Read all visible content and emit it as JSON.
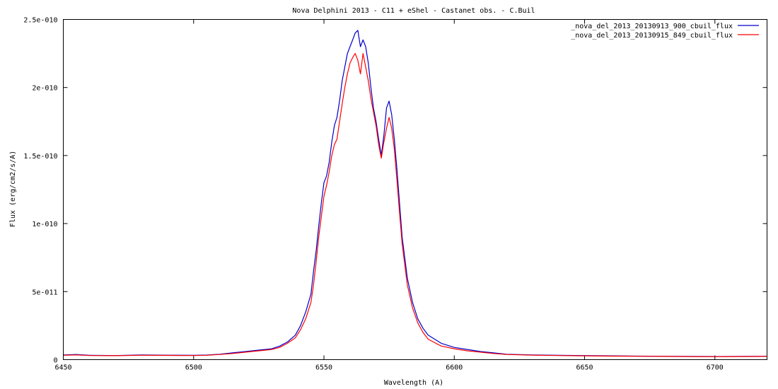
{
  "chart_data": {
    "type": "line",
    "title": "Nova Delphini 2013 - C11 + eShel - Castanet obs. - C.Buil",
    "xlabel": "Wavelength (A)",
    "ylabel": "Flux (erg/cm2/s/A)",
    "xlim": [
      6450,
      6720
    ],
    "ylim": [
      0,
      2.5e-10
    ],
    "grid": false,
    "legend_position": "top-right",
    "x_ticks": [
      {
        "value": 6450,
        "label": "6450"
      },
      {
        "value": 6500,
        "label": "6500"
      },
      {
        "value": 6550,
        "label": "6550"
      },
      {
        "value": 6600,
        "label": "6600"
      },
      {
        "value": 6650,
        "label": "6650"
      },
      {
        "value": 6700,
        "label": "6700"
      }
    ],
    "y_ticks": [
      {
        "value": 0,
        "label": "0"
      },
      {
        "value": 5e-11,
        "label": "5e-011"
      },
      {
        "value": 1e-10,
        "label": "1e-010"
      },
      {
        "value": 1.5e-10,
        "label": "1.5e-010"
      },
      {
        "value": 2e-10,
        "label": "2e-010"
      },
      {
        "value": 2.5e-10,
        "label": "2.5e-010"
      }
    ],
    "series": [
      {
        "name": "_nova_del_2013_20130913_900_cbuil_flux",
        "color": "#0000cc",
        "x": [
          6450,
          6455,
          6460,
          6470,
          6480,
          6490,
          6500,
          6505,
          6510,
          6515,
          6520,
          6525,
          6530,
          6533,
          6536,
          6539,
          6541,
          6543,
          6545,
          6546,
          6547,
          6548,
          6549,
          6550,
          6551,
          6552,
          6553,
          6554,
          6555,
          6556,
          6557,
          6558,
          6559,
          6560,
          6561,
          6562,
          6563,
          6564,
          6565,
          6566,
          6567,
          6568,
          6569,
          6570,
          6571,
          6572,
          6573,
          6574,
          6575,
          6576,
          6577,
          6578,
          6579,
          6580,
          6582,
          6584,
          6586,
          6588,
          6590,
          6595,
          6600,
          6605,
          6610,
          6615,
          6620,
          6630,
          6640,
          6650,
          6660,
          6670,
          6680,
          6690,
          6700,
          6710,
          6720
        ],
        "y": [
          3.5e-12,
          3.8e-12,
          3.2e-12,
          3e-12,
          3.5e-12,
          3.3e-12,
          3.2e-12,
          3.4e-12,
          4e-12,
          5e-12,
          6e-12,
          7e-12,
          8e-12,
          1e-11,
          1.3e-11,
          1.8e-11,
          2.5e-11,
          3.5e-11,
          4.8e-11,
          6.5e-11,
          8e-11,
          9.8e-11,
          1.15e-10,
          1.3e-10,
          1.35e-10,
          1.45e-10,
          1.6e-10,
          1.72e-10,
          1.78e-10,
          1.9e-10,
          2.05e-10,
          2.15e-10,
          2.25e-10,
          2.3e-10,
          2.35e-10,
          2.4e-10,
          2.42e-10,
          2.3e-10,
          2.35e-10,
          2.3e-10,
          2.18e-10,
          2e-10,
          1.85e-10,
          1.75e-10,
          1.62e-10,
          1.5e-10,
          1.65e-10,
          1.85e-10,
          1.9e-10,
          1.8e-10,
          1.62e-10,
          1.4e-10,
          1.15e-10,
          9e-11,
          6e-11,
          4.2e-11,
          3e-11,
          2.3e-11,
          1.8e-11,
          1.2e-11,
          9e-12,
          7.5e-12,
          6e-12,
          5e-12,
          4e-12,
          3.5e-12,
          3.2e-12,
          3e-12,
          2.8e-12,
          2.6e-12,
          2.5e-12,
          2.4e-12,
          2.3e-12,
          2.4e-12,
          2.5e-12
        ]
      },
      {
        "name": "_nova_del_2013_20130915_849_cbuil_flux",
        "color": "#ff0000",
        "x": [
          6450,
          6455,
          6460,
          6470,
          6480,
          6490,
          6500,
          6505,
          6510,
          6515,
          6520,
          6525,
          6530,
          6533,
          6536,
          6539,
          6541,
          6543,
          6545,
          6546,
          6547,
          6548,
          6549,
          6550,
          6551,
          6552,
          6553,
          6554,
          6555,
          6556,
          6557,
          6558,
          6559,
          6560,
          6561,
          6562,
          6563,
          6564,
          6565,
          6566,
          6567,
          6568,
          6569,
          6570,
          6571,
          6572,
          6573,
          6574,
          6575,
          6576,
          6577,
          6578,
          6579,
          6580,
          6582,
          6584,
          6586,
          6588,
          6590,
          6595,
          6600,
          6605,
          6610,
          6615,
          6620,
          6630,
          6640,
          6650,
          6660,
          6670,
          6680,
          6690,
          6700,
          6710,
          6720
        ],
        "y": [
          3.2e-12,
          3.5e-12,
          3e-12,
          2.9e-12,
          3.2e-12,
          3.1e-12,
          3e-12,
          3.2e-12,
          3.8e-12,
          4.5e-12,
          5.5e-12,
          6.5e-12,
          7.5e-12,
          9e-12,
          1.2e-11,
          1.6e-11,
          2.2e-11,
          3e-11,
          4.2e-11,
          5.5e-11,
          7.2e-11,
          9e-11,
          1.05e-10,
          1.2e-10,
          1.28e-10,
          1.38e-10,
          1.5e-10,
          1.58e-10,
          1.62e-10,
          1.75e-10,
          1.88e-10,
          2e-10,
          2.1e-10,
          2.18e-10,
          2.22e-10,
          2.25e-10,
          2.2e-10,
          2.1e-10,
          2.25e-10,
          2.15e-10,
          2.05e-10,
          1.92e-10,
          1.82e-10,
          1.72e-10,
          1.58e-10,
          1.48e-10,
          1.6e-10,
          1.7e-10,
          1.78e-10,
          1.7e-10,
          1.55e-10,
          1.32e-10,
          1.08e-10,
          8.5e-11,
          5.5e-11,
          3.8e-11,
          2.7e-11,
          2e-11,
          1.5e-11,
          1e-11,
          8e-12,
          6.5e-12,
          5.5e-12,
          4.5e-12,
          3.8e-12,
          3.3e-12,
          3e-12,
          2.8e-12,
          2.6e-12,
          2.5e-12,
          2.4e-12,
          2.3e-12,
          2.2e-12,
          2.3e-12,
          2.4e-12
        ]
      }
    ]
  }
}
